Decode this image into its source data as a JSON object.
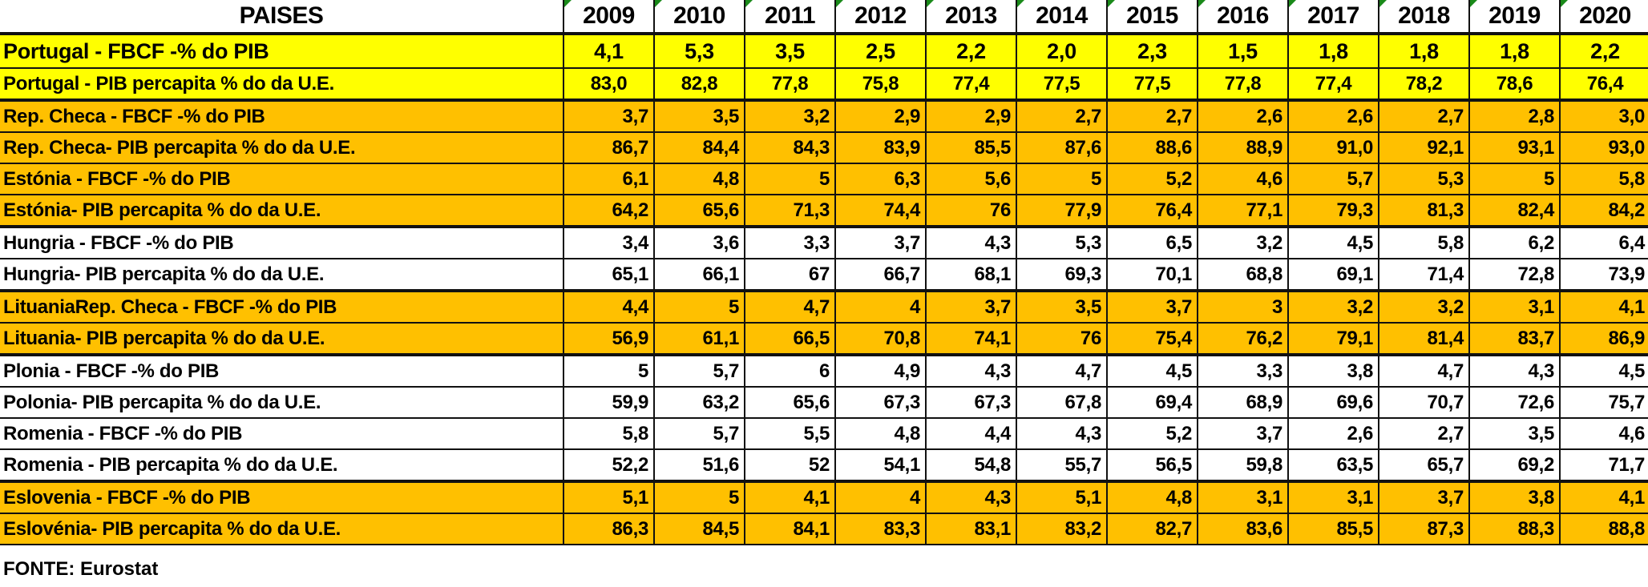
{
  "table": {
    "header_label": "PAISES",
    "years": [
      "2009",
      "2010",
      "2011",
      "2012",
      "2013",
      "2014",
      "2015",
      "2016",
      "2017",
      "2018",
      "2019",
      "2020"
    ],
    "rows": [
      {
        "label": "Portugal - FBCF -% do PIB",
        "color": "yellow",
        "values": [
          "4,1",
          "5,3",
          "3,5",
          "2,5",
          "2,2",
          "2,0",
          "2,3",
          "1,5",
          "1,8",
          "1,8",
          "1,8",
          "2,2"
        ]
      },
      {
        "label": "Portugal - PIB percapita % do da U.E.",
        "color": "yellow",
        "values": [
          "83,0",
          "82,8",
          "77,8",
          "75,8",
          "77,4",
          "77,5",
          "77,5",
          "77,8",
          "77,4",
          "78,2",
          "78,6",
          "76,4"
        ]
      },
      {
        "label": "Rep. Checa - FBCF -% do PIB",
        "color": "orange",
        "values": [
          "3,7",
          "3,5",
          "3,2",
          "2,9",
          "2,9",
          "2,7",
          "2,7",
          "2,6",
          "2,6",
          "2,7",
          "2,8",
          "3,0"
        ]
      },
      {
        "label": "Rep. Checa- PIB percapita % do da  U.E.",
        "color": "orange",
        "values": [
          "86,7",
          "84,4",
          "84,3",
          "83,9",
          "85,5",
          "87,6",
          "88,6",
          "88,9",
          "91,0",
          "92,1",
          "93,1",
          "93,0"
        ]
      },
      {
        "label": "Estónia  - FBCF -% do PIB",
        "color": "orange",
        "values": [
          "6,1",
          "4,8",
          "5",
          "6,3",
          "5,6",
          "5",
          "5,2",
          "4,6",
          "5,7",
          "5,3",
          "5",
          "5,8"
        ]
      },
      {
        "label": "Estónia- PIB percapita % do da U.E.",
        "color": "orange",
        "values": [
          "64,2",
          "65,6",
          "71,3",
          "74,4",
          "76",
          "77,9",
          "76,4",
          "77,1",
          "79,3",
          "81,3",
          "82,4",
          "84,2"
        ]
      },
      {
        "label": "Hungria - FBCF -% do PIB",
        "color": "white",
        "values": [
          "3,4",
          "3,6",
          "3,3",
          "3,7",
          "4,3",
          "5,3",
          "6,5",
          "3,2",
          "4,5",
          "5,8",
          "6,2",
          "6,4"
        ]
      },
      {
        "label": "Hungria- PIB percapita % do da U.E.",
        "color": "white",
        "values": [
          "65,1",
          "66,1",
          "67",
          "66,7",
          "68,1",
          "69,3",
          "70,1",
          "68,8",
          "69,1",
          "71,4",
          "72,8",
          "73,9"
        ]
      },
      {
        "label": "LituaniaRep. Checa - FBCF -% do PIB",
        "color": "orange",
        "values": [
          "4,4",
          "5",
          "4,7",
          "4",
          "3,7",
          "3,5",
          "3,7",
          "3",
          "3,2",
          "3,2",
          "3,1",
          "4,1"
        ]
      },
      {
        "label": "Lituania- PIB percapita % do da U.E.",
        "color": "orange",
        "values": [
          "56,9",
          "61,1",
          "66,5",
          "70,8",
          "74,1",
          "76",
          "75,4",
          "76,2",
          "79,1",
          "81,4",
          "83,7",
          "86,9"
        ]
      },
      {
        "label": "Plonia - FBCF -% do PIB",
        "color": "white",
        "values": [
          "5",
          "5,7",
          "6",
          "4,9",
          "4,3",
          "4,7",
          "4,5",
          "3,3",
          "3,8",
          "4,7",
          "4,3",
          "4,5"
        ]
      },
      {
        "label": "Polonia- PIB percapita % do da U.E.",
        "color": "white",
        "values": [
          "59,9",
          "63,2",
          "65,6",
          "67,3",
          "67,3",
          "67,8",
          "69,4",
          "68,9",
          "69,6",
          "70,7",
          "72,6",
          "75,7"
        ]
      },
      {
        "label": "Romenia - FBCF -% do PIB",
        "color": "white",
        "values": [
          "5,8",
          "5,7",
          "5,5",
          "4,8",
          "4,4",
          "4,3",
          "5,2",
          "3,7",
          "2,6",
          "2,7",
          "3,5",
          "4,6"
        ]
      },
      {
        "label": "Romenia - PIB percapita % do da U.E.",
        "color": "white",
        "values": [
          "52,2",
          "51,6",
          "52",
          "54,1",
          "54,8",
          "55,7",
          "56,5",
          "59,8",
          "63,5",
          "65,7",
          "69,2",
          "71,7"
        ]
      },
      {
        "label": "Eslovenia - FBCF -% do PIB",
        "color": "orange",
        "values": [
          "5,1",
          "5",
          "4,1",
          "4",
          "4,3",
          "5,1",
          "4,8",
          "3,1",
          "3,1",
          "3,7",
          "3,8",
          "4,1"
        ]
      },
      {
        "label": "Eslovénia- PIB percapita % do da U.E.",
        "color": "orange",
        "values": [
          "86,3",
          "84,5",
          "84,1",
          "83,3",
          "83,1",
          "83,2",
          "82,7",
          "83,6",
          "85,5",
          "87,3",
          "88,3",
          "88,8"
        ]
      }
    ]
  },
  "footer": {
    "source": "FONTE: Eurostat"
  },
  "colors": {
    "yellow": "#FFFF00",
    "orange": "#FFC000",
    "white": "#FFFFFF",
    "indicator": "#1A8A1A"
  }
}
